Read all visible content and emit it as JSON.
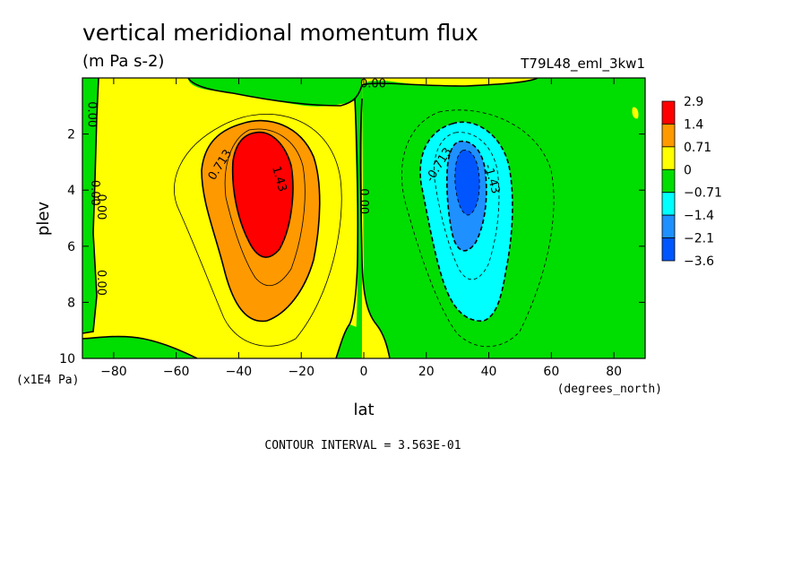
{
  "chart_data": {
    "type": "heatmap",
    "title": "vertical meridional momentum flux",
    "units": "(m Pa s-2)",
    "run_label": "T79L48_eml_3kw1",
    "xlabel": "lat",
    "ylabel": "plev",
    "x_units": "(degrees_north)",
    "y_units": "(x1E4 Pa)",
    "contour_interval_text": "CONTOUR INTERVAL = 3.563E-01",
    "xlim": [
      -90,
      90
    ],
    "ylim": [
      10,
      0
    ],
    "x_ticks": [
      -80,
      -60,
      -40,
      -20,
      0,
      20,
      40,
      60,
      80
    ],
    "y_ticks": [
      2,
      4,
      6,
      8,
      10
    ],
    "colorbar": {
      "levels": [
        "2.9",
        "1.4",
        "0.71",
        "0",
        "−0.71",
        "−1.4",
        "−2.1",
        "−3.6"
      ],
      "colors": [
        "#ff0000",
        "#ff9900",
        "#ffff00",
        "#00dd00",
        "#00ffff",
        "#1e90ff",
        "#0055ff"
      ]
    },
    "contour_labels": [
      {
        "text": "0.713",
        "lat": -46,
        "plev": 3.1,
        "angle": -58
      },
      {
        "text": "1.43",
        "lat": -27,
        "plev": 3.6,
        "angle": 74
      },
      {
        "text": "0.00",
        "lat": 0,
        "plev": 4.4,
        "angle": 90
      },
      {
        "text": "-0.713",
        "lat": 24,
        "plev": 3.1,
        "angle": -58
      },
      {
        "text": "-1.43",
        "lat": 41,
        "plev": 3.6,
        "angle": 74
      },
      {
        "text": "0.00",
        "lat": 3,
        "plev": 0.2,
        "angle": 0
      },
      {
        "text": "0.00",
        "lat": -87,
        "plev": 1.3,
        "angle": 90
      },
      {
        "text": "0.00",
        "lat": -86,
        "plev": 4.1,
        "angle": 90
      },
      {
        "text": "0.00",
        "lat": -84,
        "plev": 4.6,
        "angle": 90
      },
      {
        "text": "0.00",
        "lat": -84,
        "plev": 7.3,
        "angle": 90
      }
    ]
  }
}
